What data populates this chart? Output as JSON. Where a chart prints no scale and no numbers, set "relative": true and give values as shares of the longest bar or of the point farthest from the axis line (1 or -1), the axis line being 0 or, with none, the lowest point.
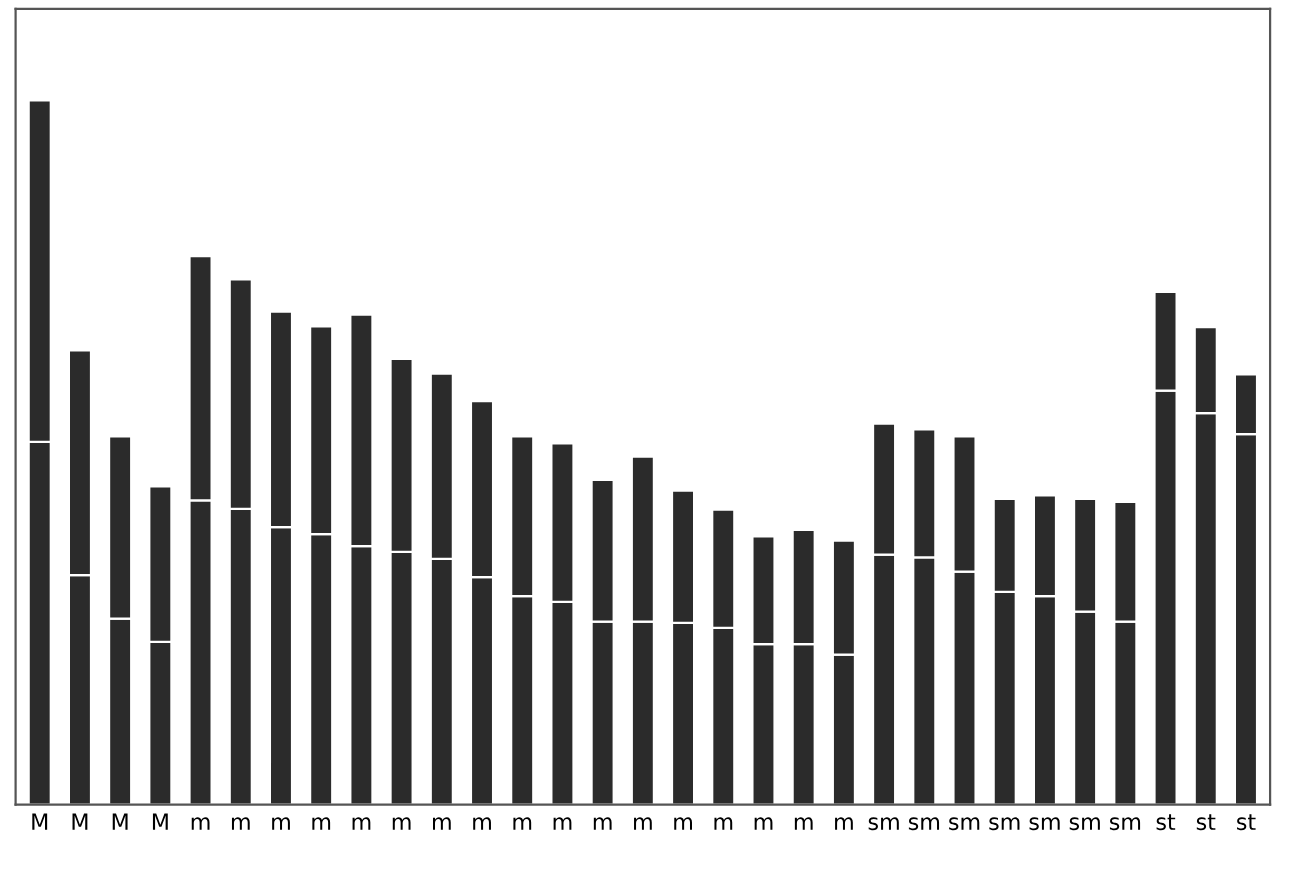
{
  "chart_data": {
    "type": "bar",
    "relative": true,
    "stacked": true,
    "categories": [
      "M",
      "M",
      "M",
      "M",
      "m",
      "m",
      "m",
      "m",
      "m",
      "m",
      "m",
      "m",
      "m",
      "m",
      "m",
      "m",
      "m",
      "m",
      "m",
      "m",
      "m",
      "sm",
      "sm",
      "sm",
      "sm",
      "sm",
      "sm",
      "sm",
      "st",
      "st",
      "st"
    ],
    "series": [
      {
        "color": "#2b2b2b",
        "values": [
          0.515,
          0.326,
          0.264,
          0.231,
          0.432,
          0.42,
          0.394,
          0.384,
          0.367,
          0.359,
          0.349,
          0.323,
          0.296,
          0.288,
          0.26,
          0.26,
          0.258,
          0.251,
          0.228,
          0.228,
          0.213,
          0.355,
          0.351,
          0.331,
          0.302,
          0.296,
          0.274,
          0.26,
          0.588,
          0.556,
          0.526
        ]
      },
      {
        "color": "#2b2b2b",
        "values": [
          0.485,
          0.319,
          0.259,
          0.221,
          0.347,
          0.326,
          0.306,
          0.295,
          0.329,
          0.274,
          0.263,
          0.25,
          0.227,
          0.225,
          0.201,
          0.234,
          0.188,
          0.168,
          0.153,
          0.162,
          0.162,
          0.186,
          0.182,
          0.192,
          0.132,
          0.143,
          0.16,
          0.17,
          0.14,
          0.122,
          0.085
        ]
      }
    ]
  }
}
